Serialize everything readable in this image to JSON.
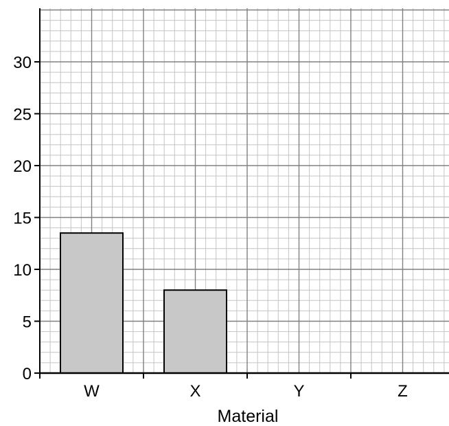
{
  "chart_data": {
    "type": "bar",
    "title": "",
    "xlabel": "Material",
    "ylabel": "",
    "categories": [
      "W",
      "X",
      "Y",
      "Z"
    ],
    "values": [
      13.5,
      8,
      null,
      null
    ],
    "ylim": [
      0,
      35
    ],
    "yticks": [
      0,
      5,
      10,
      15,
      20,
      25,
      30
    ],
    "ytick_labels": [
      "0",
      "5",
      "10",
      "15",
      "20",
      "25",
      "30"
    ],
    "grid": true,
    "minor_grid_step": 1,
    "major_grid_step": 5,
    "legend": "none",
    "colors": {
      "bar_fill": "#c8c8c8",
      "bar_stroke": "#000000",
      "major_grid": "#808080",
      "minor_grid": "#c4c4c4",
      "axis": "#000000"
    }
  }
}
